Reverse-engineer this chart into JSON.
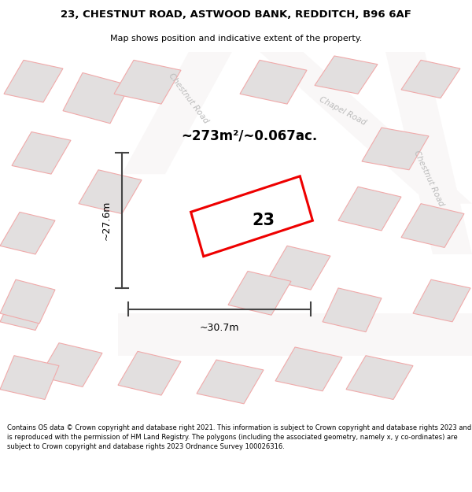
{
  "title_line1": "23, CHESTNUT ROAD, ASTWOOD BANK, REDDITCH, B96 6AF",
  "title_line2": "Map shows position and indicative extent of the property.",
  "area_text": "~273m²/~0.067ac.",
  "label_number": "23",
  "dim_height": "~27.6m",
  "dim_width": "~30.7m",
  "footer_text": "Contains OS data © Crown copyright and database right 2021. This information is subject to Crown copyright and database rights 2023 and is reproduced with the permission of HM Land Registry. The polygons (including the associated geometry, namely x, y co-ordinates) are subject to Crown copyright and database rights 2023 Ordnance Survey 100026316.",
  "bg_color": "#ffffff",
  "map_bg": "#f2f0f0",
  "plot_outline_color": "#ee0000",
  "dim_line_color": "#444444",
  "road_label_color": "#bbbbbb",
  "building_fill": "#e2dfdf",
  "building_outline": "#f0aaaa",
  "road_fill": "#f9f7f7"
}
